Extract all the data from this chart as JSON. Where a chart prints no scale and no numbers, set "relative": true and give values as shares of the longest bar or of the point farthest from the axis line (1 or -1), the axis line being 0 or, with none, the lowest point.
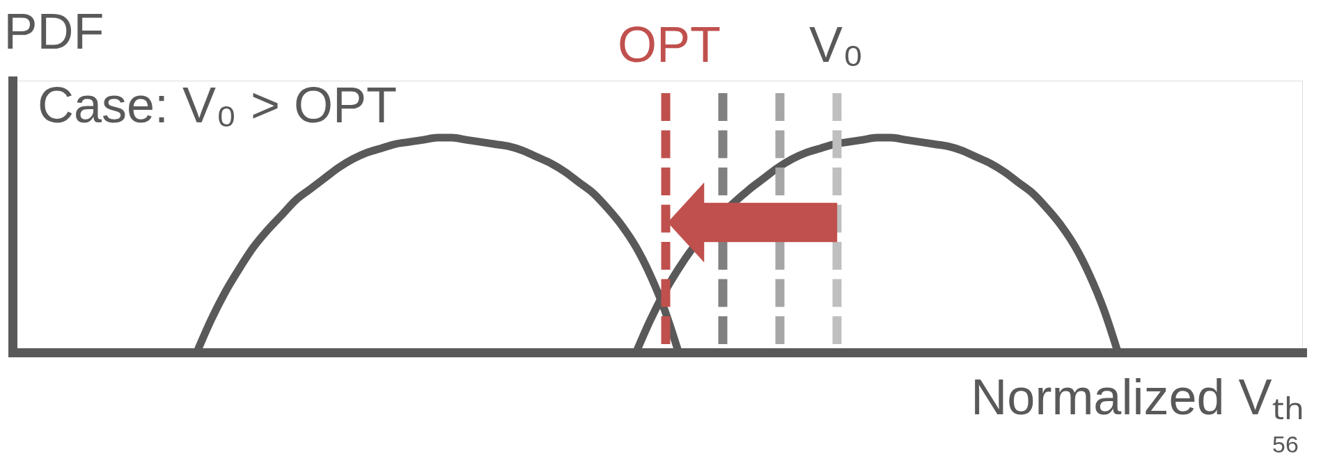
{
  "chart_data": {
    "type": "line",
    "relative": true,
    "ylabel": "PDF",
    "xlabel": "Normalized Vₜₕ",
    "annotations": [
      "Case: V₀ > OPT",
      "OPT",
      "V₀",
      "56"
    ],
    "categories": [
      null,
      null,
      null,
      null,
      null,
      null,
      null,
      null,
      null,
      null,
      null,
      null,
      null,
      null,
      null,
      null,
      null,
      null,
      null,
      null,
      null,
      null,
      null,
      null,
      null,
      null,
      null,
      null,
      null,
      null,
      null,
      null,
      null,
      null,
      null,
      null,
      null,
      null,
      null,
      null,
      null,
      null,
      null,
      null,
      null,
      null,
      null,
      null,
      null,
      null,
      null,
      null,
      null,
      null,
      null,
      null,
      null,
      null,
      null,
      null,
      null,
      null,
      null,
      null,
      null,
      null,
      null,
      null,
      null,
      null,
      null,
      null,
      null,
      null,
      null,
      null,
      null,
      null,
      null,
      null,
      null,
      null,
      null,
      null,
      null,
      null,
      null,
      null,
      null,
      null,
      null,
      null
    ],
    "series": [
      {
        "color": "#595959",
        "values": [
          null,
          null,
          null,
          null,
          null,
          null,
          null,
          null,
          null,
          null,
          null,
          null,
          null,
          0,
          0.15,
          0.28,
          0.39,
          0.49,
          0.57,
          0.64,
          0.71,
          0.76,
          0.81,
          0.86,
          0.9,
          0.93,
          0.95,
          0.97,
          0.98,
          0.99,
          1,
          1,
          0.99,
          0.98,
          0.97,
          0.96,
          0.94,
          0.91,
          0.88,
          0.84,
          0.79,
          0.74,
          0.67,
          0.59,
          0.49,
          0.36,
          0.2,
          0,
          null,
          null,
          null,
          null,
          null,
          null,
          null,
          null,
          null,
          null,
          null,
          null,
          null,
          null,
          null,
          null,
          null,
          null,
          null,
          null,
          null,
          null,
          null,
          null,
          null,
          null,
          null,
          null,
          null,
          null,
          null,
          null,
          null,
          null,
          null,
          null,
          null,
          null,
          null,
          null,
          null,
          null,
          null,
          null
        ]
      },
      {
        "color": "#595959",
        "values": [
          null,
          null,
          null,
          null,
          null,
          null,
          null,
          null,
          null,
          null,
          null,
          null,
          null,
          null,
          null,
          null,
          null,
          null,
          null,
          null,
          null,
          null,
          null,
          null,
          null,
          null,
          null,
          null,
          null,
          null,
          null,
          null,
          null,
          null,
          null,
          null,
          null,
          null,
          null,
          null,
          null,
          null,
          null,
          null,
          0,
          0.15,
          0.28,
          0.39,
          null,
          null,
          null,
          null,
          0.76,
          0.81,
          0.86,
          0.9,
          0.93,
          0.95,
          0.97,
          0.98,
          0.99,
          1,
          1,
          0.99,
          0.98,
          0.97,
          0.96,
          0.94,
          0.91,
          0.88,
          0.84,
          0.79,
          0.74,
          0.67,
          0.59,
          0.49,
          0.36,
          0.2,
          0,
          null,
          null,
          null,
          null,
          null,
          null,
          null,
          null,
          null,
          null,
          null,
          null,
          null
        ]
      }
    ]
  }
}
